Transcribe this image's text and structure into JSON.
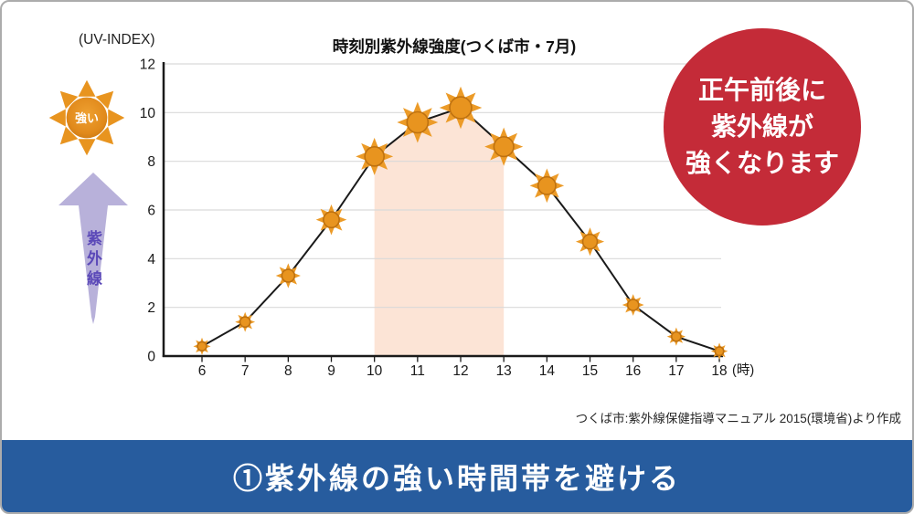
{
  "slide": {
    "uv_index_label": "(UV-INDEX)",
    "source_note": "つくば市:紫外線保健指導マニュアル 2015(環境省)より作成"
  },
  "left_graphic": {
    "sun_label": "強い",
    "arrow_label": "紫外線",
    "sun_color": "#E8941F",
    "arrow_color": "#B8B1DA",
    "arrow_text_color": "#5B49B8"
  },
  "callout": {
    "lines": [
      "正午前後に",
      "紫外線が",
      "強くなります"
    ],
    "bg_color": "#C42B38",
    "text_color": "#FFFFFF"
  },
  "banner": {
    "text": "①紫外線の強い時間帯を避ける",
    "bg_color": "#275C9E",
    "text_color": "#FFFFFF"
  },
  "chart_data": {
    "type": "line",
    "title": "時刻別紫外線強度(つくば市・7月)",
    "x": [
      6,
      7,
      8,
      9,
      10,
      11,
      12,
      13,
      14,
      15,
      16,
      17,
      18
    ],
    "values": [
      0.4,
      1.4,
      3.3,
      5.6,
      8.2,
      9.6,
      10.2,
      8.6,
      7.0,
      4.7,
      2.1,
      0.8,
      0.2
    ],
    "x_unit_label": "(時)",
    "xlabel": "",
    "ylabel": "",
    "ylim": [
      0,
      12
    ],
    "yticks": [
      0,
      2,
      4,
      6,
      8,
      10,
      12
    ],
    "grid": true,
    "legend": "none",
    "line_color": "#1A1A1A",
    "grid_color": "#D9D9D9",
    "marker": "sun-icon",
    "marker_color": "#E8941F",
    "marker_ray_color": "#EC9B28",
    "marker_stroke_color": "#BE7110",
    "highlight_band": {
      "x_start": 10,
      "x_end": 13,
      "color": "#FCE4D6"
    }
  }
}
